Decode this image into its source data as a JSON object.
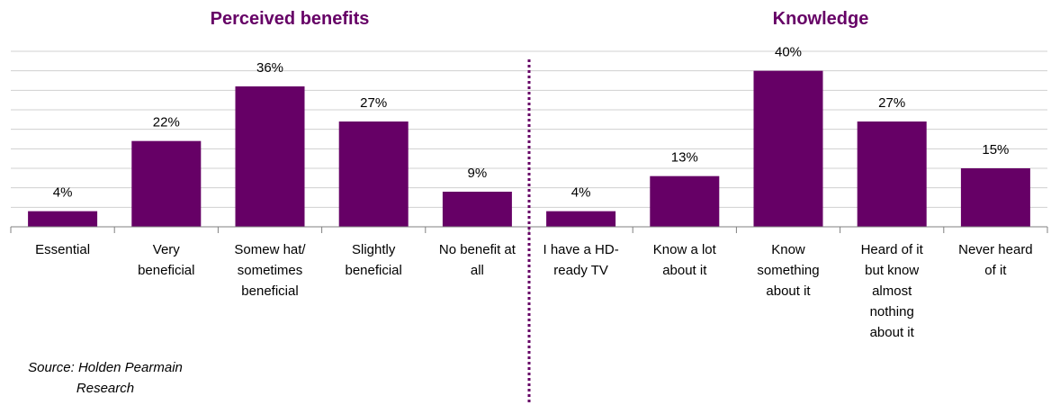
{
  "titles": {
    "left": "Perceived benefits",
    "right": "Knowledge"
  },
  "source": "Source: Holden Pearmain\nResearch",
  "colors": {
    "bar": "#660066",
    "title": "#660066",
    "divider": "#660066",
    "grid": "#d0d0d0"
  },
  "chart_data": {
    "type": "bar",
    "categories": [
      "Essential",
      "Very\nbeneficial",
      "Somew hat/\nsometimes\nbeneficial",
      "Slightly\nbeneficial",
      "No benefit at\nall",
      "I have a HD-\nready TV",
      "Know  a lot\nabout it",
      "Know\nsomething\nabout it",
      "Heard of it\nbut know\nalmost\nnothing\nabout it",
      "Never heard\nof it"
    ],
    "values": [
      4,
      22,
      36,
      27,
      9,
      4,
      13,
      40,
      27,
      15
    ],
    "data_labels": [
      "4%",
      "22%",
      "36%",
      "27%",
      "9%",
      "4%",
      "13%",
      "40%",
      "27%",
      "15%"
    ],
    "groups": [
      {
        "title": "Perceived benefits",
        "categories": [
          0,
          1,
          2,
          3,
          4
        ]
      },
      {
        "title": "Knowledge",
        "categories": [
          5,
          6,
          7,
          8,
          9
        ]
      }
    ],
    "ylim": [
      0,
      45
    ],
    "grid": true,
    "legend": "none"
  }
}
